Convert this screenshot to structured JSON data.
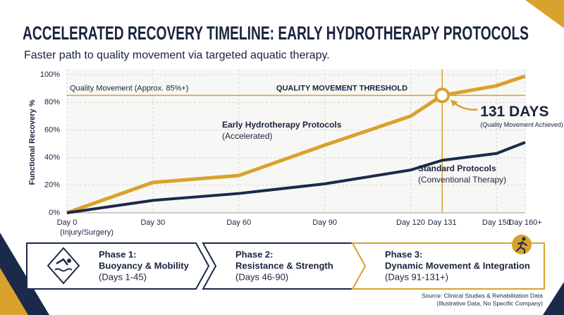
{
  "chart_data": {
    "type": "line",
    "title": "ACCELERATED RECOVERY TIMELINE: EARLY HYDROTHERAPY PROTOCOLS",
    "subtitle": "Faster path to quality movement via targeted aquatic therapy.",
    "y_label": "Functional Recovery %",
    "x": [
      0,
      30,
      60,
      90,
      120,
      131,
      150,
      160
    ],
    "xlim": [
      0,
      160
    ],
    "xticks": [
      {
        "value": 0,
        "label": "Day 0",
        "sublabel": "(Injury/Surgery)"
      },
      {
        "value": 30,
        "label": "Day 30"
      },
      {
        "value": 60,
        "label": "Day 60"
      },
      {
        "value": 90,
        "label": "Day 90"
      },
      {
        "value": 120,
        "label": "Day 120"
      },
      {
        "value": 131,
        "label": "Day 131"
      },
      {
        "value": 150,
        "label": "Day 150"
      },
      {
        "value": 160,
        "label": "Day 160+"
      }
    ],
    "ylim": [
      0,
      100
    ],
    "yticks": [
      {
        "value": 0,
        "label": "0%"
      },
      {
        "value": 20,
        "label": "20%"
      },
      {
        "value": 40,
        "label": "40%"
      },
      {
        "value": 60,
        "label": "60%"
      },
      {
        "value": 80,
        "label": "80%"
      },
      {
        "value": 100,
        "label": "100%"
      }
    ],
    "grid": true,
    "series": [
      {
        "name": "Early Hydrotherapy Protocols",
        "note": "(Accelerated)",
        "color": "#d9a22c",
        "values": [
          0,
          22,
          27,
          49,
          70,
          85,
          92,
          99
        ]
      },
      {
        "name": "Standard Protocols",
        "note": "(Conventional Therapy)",
        "color": "#1b2a4a",
        "values": [
          0,
          9,
          14,
          21,
          31,
          38,
          43,
          51
        ]
      }
    ],
    "threshold": {
      "value": 85,
      "label": "Quality Movement (Approx. 85%+)",
      "title": "QUALITY MOVEMENT THRESHOLD"
    },
    "milestone": {
      "x": 131,
      "label": "131 DAYS",
      "note": "(Quality Movement Achieved)"
    },
    "phases": [
      {
        "title": "Phase 1:",
        "name": "Buoyancy & Mobility",
        "days": "(Days 1-45)"
      },
      {
        "title": "Phase 2:",
        "name": "Resistance & Strength",
        "days": "(Days 46-90)"
      },
      {
        "title": "Phase 3:",
        "name": "Dynamic Movement & Integration",
        "days": "(Days 91-131+)"
      }
    ],
    "source": [
      "Source: Clinical Studies & Rehabilitation Data",
      "(Illustrative Data, No Specific Company)"
    ]
  }
}
